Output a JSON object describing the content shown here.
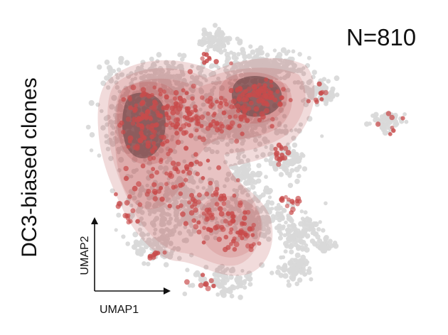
{
  "figure": {
    "side_label": "DC3-biased clones",
    "count_label": "N=810"
  },
  "chart_data": {
    "type": "scatter",
    "title": "",
    "xlabel": "UMAP1",
    "ylabel": "UMAP2",
    "grid": false,
    "legend": "none",
    "annotation": "N=810",
    "background_cells_color": "#d9d9d9",
    "clone_point_color": "#c84b4b",
    "density_color": "#b84a4a",
    "density_peak_color": "#5f3a3c",
    "series": [
      {
        "values": []
      }
    ]
  }
}
